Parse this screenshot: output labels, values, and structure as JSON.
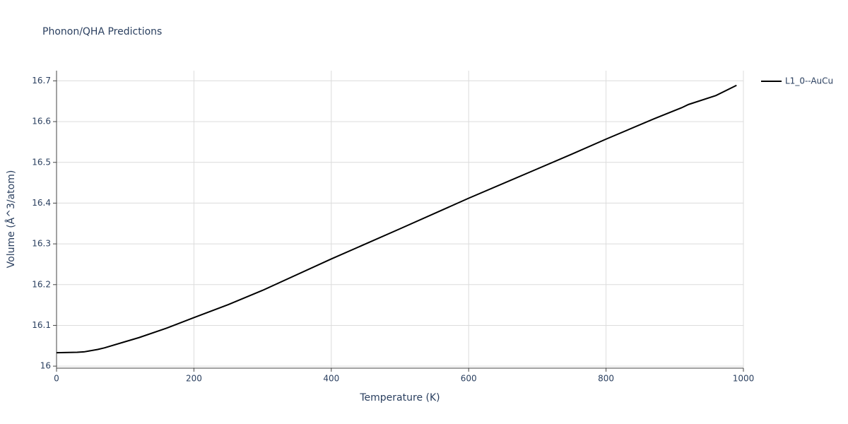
{
  "chart_data": {
    "type": "line",
    "title": "Phonon/QHA Predictions",
    "x_label": "Temperature (K)",
    "y_label": "Volume (Å^3/atom)",
    "x": [
      0,
      30,
      40,
      60,
      70,
      100,
      120,
      160,
      200,
      250,
      300,
      400,
      500,
      600,
      700,
      750,
      800,
      870,
      910,
      920,
      960,
      990
    ],
    "series": [
      {
        "name": "L1_0--AuCu",
        "color": "#000000",
        "values": [
          16.033,
          16.034,
          16.035,
          16.041,
          16.045,
          16.06,
          16.07,
          16.093,
          16.119,
          16.151,
          16.186,
          16.263,
          16.337,
          16.412,
          16.484,
          16.52,
          16.557,
          16.607,
          16.634,
          16.642,
          16.664,
          16.689
        ]
      }
    ],
    "xlim": [
      0,
      1000
    ],
    "xticks": [
      0,
      200,
      400,
      600,
      800,
      1000
    ],
    "ylim": [
      15.995,
      16.725
    ],
    "yticks": [
      16,
      16.1,
      16.2,
      16.3,
      16.4,
      16.5,
      16.6,
      16.7
    ],
    "grid": true,
    "legend": "right"
  }
}
